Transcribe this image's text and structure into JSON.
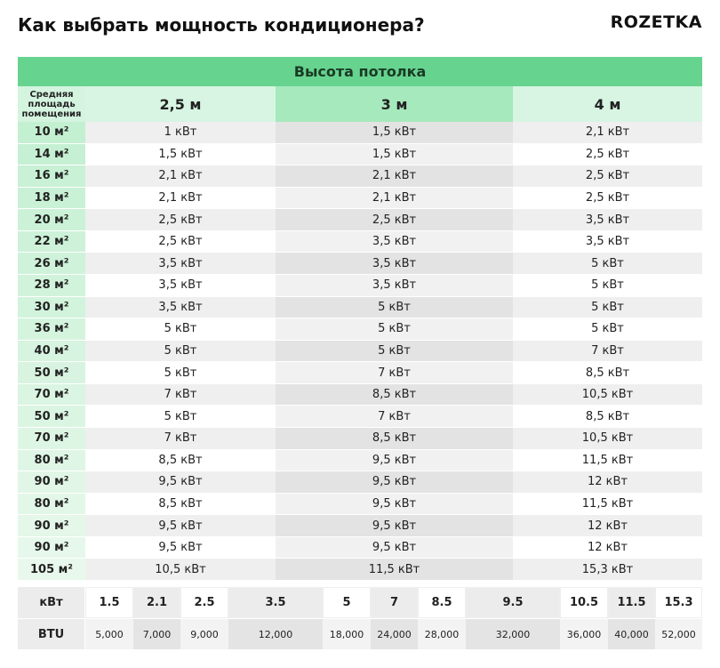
{
  "header": {
    "title": "Как выбрать мощность кондиционера?",
    "brand": "ROZETKA"
  },
  "table": {
    "heading": "Высота потолка",
    "row_header_label": "Средняя площадь помещения",
    "columns": [
      "2,5 м",
      "3 м",
      "4 м"
    ],
    "rows": [
      [
        "10 м²",
        "1 кВт",
        "1,5 кВт",
        "2,1 кВт"
      ],
      [
        "14 м²",
        "1,5 кВт",
        "1,5 кВт",
        "2,5 кВт"
      ],
      [
        "16 м²",
        "2,1 кВт",
        "2,1 кВт",
        "2,5 кВт"
      ],
      [
        "18 м²",
        "2,1 кВт",
        "2,1 кВт",
        "2,5 кВт"
      ],
      [
        "20 м²",
        "2,5 кВт",
        "2,5 кВт",
        "3,5 кВт"
      ],
      [
        "22 м²",
        "2,5 кВт",
        "3,5 кВт",
        "3,5 кВт"
      ],
      [
        "26 м²",
        "3,5 кВт",
        "3,5 кВт",
        "5 кВт"
      ],
      [
        "28 м²",
        "3,5 кВт",
        "3,5 кВт",
        "5 кВт"
      ],
      [
        "30 м²",
        "3,5 кВт",
        "5 кВт",
        "5 кВт"
      ],
      [
        "36 м²",
        "5 кВт",
        "5 кВт",
        "5 кВт"
      ],
      [
        "40 м²",
        "5 кВт",
        "5 кВт",
        "7 кВт"
      ],
      [
        "50 м²",
        "5 кВт",
        "7 кВт",
        "8,5 кВт"
      ],
      [
        "70 м²",
        "7 кВт",
        "8,5 кВт",
        "10,5 кВт"
      ],
      [
        "50 м²",
        "5 кВт",
        "7 кВт",
        "8,5 кВт"
      ],
      [
        "70 м²",
        "7 кВт",
        "8,5 кВт",
        "10,5 кВт"
      ],
      [
        "80 м²",
        "8,5 кВт",
        "9,5 кВт",
        "11,5 кВт"
      ],
      [
        "90 м²",
        "9,5 кВт",
        "9,5 кВт",
        "12 кВт"
      ],
      [
        "80 м²",
        "8,5 кВт",
        "9,5 кВт",
        "11,5 кВт"
      ],
      [
        "90 м²",
        "9,5 кВт",
        "9,5 кВт",
        "12 кВт"
      ],
      [
        "90 м²",
        "9,5 кВт",
        "9,5 кВт",
        "12 кВт"
      ],
      [
        "105 м²",
        "10,5 кВт",
        "11,5 кВт",
        "15,3 кВт"
      ]
    ]
  },
  "conversion": {
    "kw_label": "кВт",
    "btu_label": "BTU",
    "kw": [
      "1.5",
      "2.1",
      "2.5",
      "3.5",
      "5",
      "7",
      "8.5",
      "9.5",
      "10.5",
      "11.5",
      "15.3"
    ],
    "btu": [
      "5,000",
      "7,000",
      "9,000",
      "12,000",
      "18,000",
      "24,000",
      "28,000",
      "32,000",
      "36,000",
      "40,000",
      "52,000"
    ]
  }
}
